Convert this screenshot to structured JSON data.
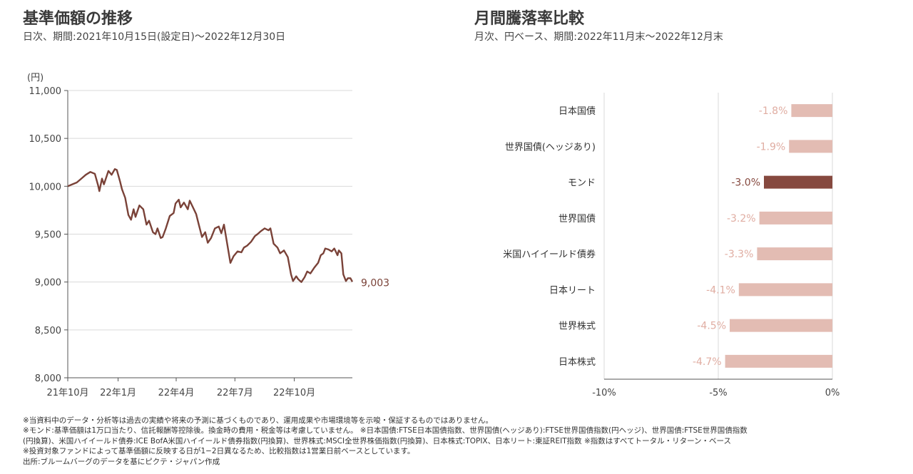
{
  "left_panel": {
    "title": "基準価額の推移",
    "subtitle": "日次、期間:2021年10月15日(設定日)～2022年12月30日"
  },
  "right_panel": {
    "title": "月間騰落率比較",
    "subtitle": "月次、円ベース、期間:2022年11月末～2022年12月末"
  },
  "notes": [
    "※当資料中のデータ・分析等は過去の実績や将来の予測に基づくものであり、運用成果や市場環境等を示唆・保証するものではありません。",
    "※モンド:基準価額は1万口当たり、信託報酬等控除後。換金時の費用・税金等は考慮していません。 ※日本国債:FTSE日本国債指数、世界国債(ヘッジあり):FTSE世界国債指数(円ヘッジ)、世界国債:FTSE世界国債指数",
    "(円換算)、米国ハイイールド債券:ICE BofA米国ハイイールド債券指数(円換算)、世界株式:MSCI全世界株価指数(円換算)、日本株式:TOPIX、日本リート:東証REIT指数 ※指数はすべてトータル・リターン・ベース",
    "※投資対象ファンドによって基準価額に反映する日が1−2日異なるため、比較指数は1営業日前ベースとしています。",
    "出所:ブルームバーグのデータを基にピクテ・ジャパン作成"
  ],
  "colors": {
    "line": "#7a4238",
    "bar_highlight": "#86493f",
    "bar_normal": "#e3bcb3",
    "label_normal": "#e0ada2",
    "grid": "#d9d9d9",
    "axis_text": "#444444"
  },
  "chart_data": [
    {
      "type": "line",
      "title": "基準価額の推移",
      "ylabel": "(円)",
      "ylim": [
        8000,
        11000
      ],
      "yticks": [
        8000,
        8500,
        9000,
        9500,
        10000,
        10500,
        11000
      ],
      "ytick_labels": [
        "8,000",
        "8,500",
        "9,000",
        "9,500",
        "10,000",
        "10,500",
        "11,000"
      ],
      "xlim": [
        "2021-10-15",
        "2022-12-30"
      ],
      "xticks": [
        {
          "date": "2021-10-15",
          "label": "21年10月"
        },
        {
          "date": "2022-01-01",
          "label": "22年1月"
        },
        {
          "date": "2022-04-01",
          "label": "22年4月"
        },
        {
          "date": "2022-07-01",
          "label": "22年7月"
        },
        {
          "date": "2022-10-01",
          "label": "22年10月"
        }
      ],
      "grid": true,
      "end_label": "9,003",
      "series": [
        {
          "points": [
            [
              "2021-10-15",
              10000
            ],
            [
              "2021-10-22",
              10020
            ],
            [
              "2021-10-29",
              10040
            ],
            [
              "2021-11-05",
              10080
            ],
            [
              "2021-11-12",
              10120
            ],
            [
              "2021-11-19",
              10150
            ],
            [
              "2021-11-26",
              10130
            ],
            [
              "2021-12-01",
              10010
            ],
            [
              "2021-12-03",
              9950
            ],
            [
              "2021-12-07",
              10080
            ],
            [
              "2021-12-10",
              10020
            ],
            [
              "2021-12-14",
              10100
            ],
            [
              "2021-12-17",
              10160
            ],
            [
              "2021-12-22",
              10120
            ],
            [
              "2021-12-27",
              10180
            ],
            [
              "2021-12-30",
              10170
            ],
            [
              "2022-01-04",
              10050
            ],
            [
              "2022-01-07",
              9970
            ],
            [
              "2022-01-12",
              9880
            ],
            [
              "2022-01-17",
              9700
            ],
            [
              "2022-01-21",
              9650
            ],
            [
              "2022-01-25",
              9760
            ],
            [
              "2022-01-28",
              9680
            ],
            [
              "2022-02-03",
              9800
            ],
            [
              "2022-02-09",
              9760
            ],
            [
              "2022-02-14",
              9600
            ],
            [
              "2022-02-18",
              9640
            ],
            [
              "2022-02-24",
              9520
            ],
            [
              "2022-02-28",
              9500
            ],
            [
              "2022-03-03",
              9560
            ],
            [
              "2022-03-08",
              9460
            ],
            [
              "2022-03-11",
              9470
            ],
            [
              "2022-03-16",
              9560
            ],
            [
              "2022-03-22",
              9690
            ],
            [
              "2022-03-28",
              9720
            ],
            [
              "2022-03-31",
              9820
            ],
            [
              "2022-04-05",
              9860
            ],
            [
              "2022-04-08",
              9780
            ],
            [
              "2022-04-13",
              9830
            ],
            [
              "2022-04-19",
              9760
            ],
            [
              "2022-04-22",
              9850
            ],
            [
              "2022-04-27",
              9780
            ],
            [
              "2022-05-02",
              9710
            ],
            [
              "2022-05-06",
              9600
            ],
            [
              "2022-05-11",
              9470
            ],
            [
              "2022-05-16",
              9520
            ],
            [
              "2022-05-20",
              9410
            ],
            [
              "2022-05-25",
              9460
            ],
            [
              "2022-05-31",
              9560
            ],
            [
              "2022-06-06",
              9580
            ],
            [
              "2022-06-10",
              9510
            ],
            [
              "2022-06-14",
              9600
            ],
            [
              "2022-06-17",
              9480
            ],
            [
              "2022-06-21",
              9320
            ],
            [
              "2022-06-24",
              9200
            ],
            [
              "2022-06-29",
              9270
            ],
            [
              "2022-07-05",
              9320
            ],
            [
              "2022-07-11",
              9310
            ],
            [
              "2022-07-15",
              9360
            ],
            [
              "2022-07-20",
              9380
            ],
            [
              "2022-07-26",
              9420
            ],
            [
              "2022-08-01",
              9480
            ],
            [
              "2022-08-05",
              9500
            ],
            [
              "2022-08-10",
              9530
            ],
            [
              "2022-08-16",
              9560
            ],
            [
              "2022-08-22",
              9540
            ],
            [
              "2022-08-25",
              9560
            ],
            [
              "2022-08-30",
              9400
            ],
            [
              "2022-09-05",
              9360
            ],
            [
              "2022-09-09",
              9300
            ],
            [
              "2022-09-15",
              9330
            ],
            [
              "2022-09-21",
              9260
            ],
            [
              "2022-09-26",
              9080
            ],
            [
              "2022-09-29",
              9010
            ],
            [
              "2022-10-04",
              9060
            ],
            [
              "2022-10-07",
              9030
            ],
            [
              "2022-10-12",
              9000
            ],
            [
              "2022-10-17",
              9050
            ],
            [
              "2022-10-21",
              9110
            ],
            [
              "2022-10-26",
              9090
            ],
            [
              "2022-11-01",
              9150
            ],
            [
              "2022-11-07",
              9200
            ],
            [
              "2022-11-11",
              9280
            ],
            [
              "2022-11-15",
              9300
            ],
            [
              "2022-11-18",
              9350
            ],
            [
              "2022-11-23",
              9340
            ],
            [
              "2022-11-28",
              9320
            ],
            [
              "2022-12-02",
              9350
            ],
            [
              "2022-12-07",
              9280
            ],
            [
              "2022-12-09",
              9330
            ],
            [
              "2022-12-13",
              9300
            ],
            [
              "2022-12-16",
              9080
            ],
            [
              "2022-12-20",
              9010
            ],
            [
              "2022-12-23",
              9040
            ],
            [
              "2022-12-27",
              9040
            ],
            [
              "2022-12-30",
              9003
            ]
          ]
        }
      ]
    },
    {
      "type": "bar",
      "orientation": "horizontal",
      "title": "月間騰落率比較",
      "xlim": [
        -10,
        0
      ],
      "xticks": [
        -10,
        -5,
        0
      ],
      "xtick_labels": [
        "-10%",
        "-5%",
        "0%"
      ],
      "categories": [
        "日本国債",
        "世界国債(ヘッジあり)",
        "モンド",
        "世界国債",
        "米国ハイイールド債券",
        "日本リート",
        "世界株式",
        "日本株式"
      ],
      "values": [
        -1.8,
        -1.9,
        -3.0,
        -3.2,
        -3.3,
        -4.1,
        -4.5,
        -4.7
      ],
      "value_labels": [
        "-1.8%",
        "-1.9%",
        "-3.0%",
        "-3.2%",
        "-3.3%",
        "-4.1%",
        "-4.5%",
        "-4.7%"
      ],
      "highlight": "モンド"
    }
  ]
}
